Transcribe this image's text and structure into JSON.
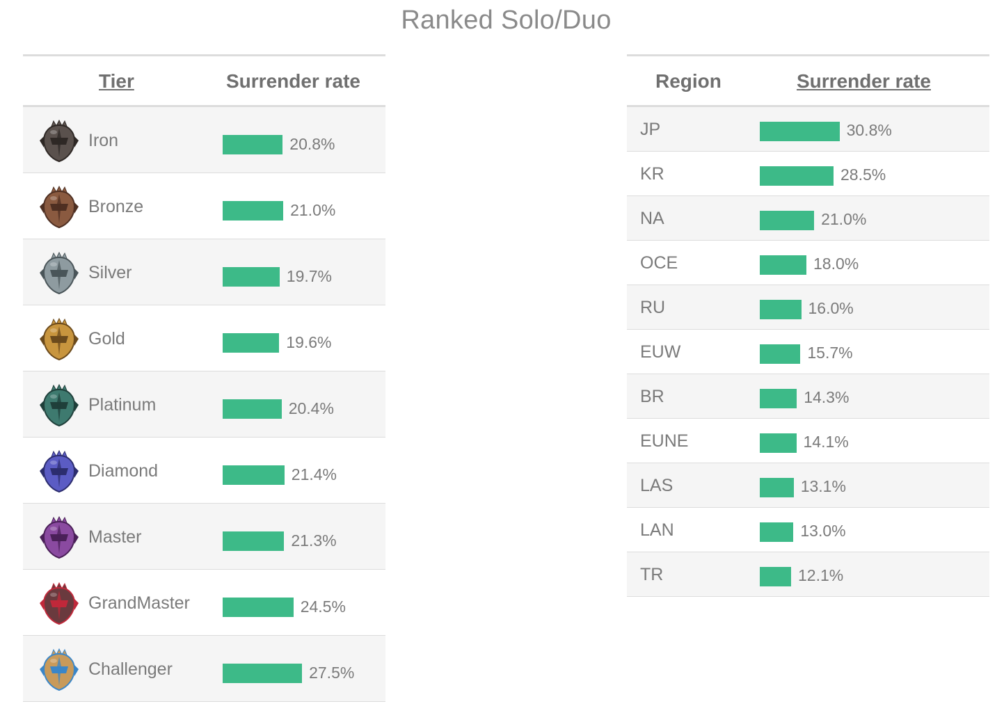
{
  "title": "Ranked Solo/Duo",
  "colors": {
    "bar": "#3dba88",
    "border": "#dcdcdc",
    "row_alt": "#f5f5f5",
    "text": "#7a7a7a"
  },
  "tier_table": {
    "col_tier": "Tier",
    "col_rate": "Surrender rate",
    "sorted_by": "Tier",
    "rows": [
      {
        "name": "Iron",
        "label": "20.8%",
        "value": 20.8,
        "icon": "iron-emblem-icon",
        "color": "#5a514d",
        "accent": "#2e2825"
      },
      {
        "name": "Bronze",
        "label": "21.0%",
        "value": 21.0,
        "icon": "bronze-emblem-icon",
        "color": "#8a5a40",
        "accent": "#4e2f22"
      },
      {
        "name": "Silver",
        "label": "19.7%",
        "value": 19.7,
        "icon": "silver-emblem-icon",
        "color": "#8e9ba0",
        "accent": "#4a5559"
      },
      {
        "name": "Gold",
        "label": "19.6%",
        "value": 19.6,
        "icon": "gold-emblem-icon",
        "color": "#c8953e",
        "accent": "#6b4a1c"
      },
      {
        "name": "Platinum",
        "label": "20.4%",
        "value": 20.4,
        "icon": "platinum-emblem-icon",
        "color": "#3e7a6f",
        "accent": "#1f3f3a"
      },
      {
        "name": "Diamond",
        "label": "21.4%",
        "value": 21.4,
        "icon": "diamond-emblem-icon",
        "color": "#5b5cc4",
        "accent": "#2c2d6e"
      },
      {
        "name": "Master",
        "label": "21.3%",
        "value": 21.3,
        "icon": "master-emblem-icon",
        "color": "#8a4aa0",
        "accent": "#4a2058"
      },
      {
        "name": "GrandMaster",
        "label": "24.5%",
        "value": 24.5,
        "icon": "grandmaster-emblem-icon",
        "color": "#6a3a3e",
        "accent": "#c0283a"
      },
      {
        "name": "Challenger",
        "label": "27.5%",
        "value": 27.5,
        "icon": "challenger-emblem-icon",
        "color": "#c89a5a",
        "accent": "#3a86c8"
      }
    ]
  },
  "region_table": {
    "col_region": "Region",
    "col_rate": "Surrender rate",
    "sorted_by": "Surrender rate",
    "rows": [
      {
        "name": "JP",
        "label": "30.8%",
        "value": 30.8
      },
      {
        "name": "KR",
        "label": "28.5%",
        "value": 28.5
      },
      {
        "name": "NA",
        "label": "21.0%",
        "value": 21.0
      },
      {
        "name": "OCE",
        "label": "18.0%",
        "value": 18.0
      },
      {
        "name": "RU",
        "label": "16.0%",
        "value": 16.0
      },
      {
        "name": "EUW",
        "label": "15.7%",
        "value": 15.7
      },
      {
        "name": "BR",
        "label": "14.3%",
        "value": 14.3
      },
      {
        "name": "EUNE",
        "label": "14.1%",
        "value": 14.1
      },
      {
        "name": "LAS",
        "label": "13.1%",
        "value": 13.1
      },
      {
        "name": "LAN",
        "label": "13.0%",
        "value": 13.0
      },
      {
        "name": "TR",
        "label": "12.1%",
        "value": 12.1
      }
    ]
  },
  "chart_data": [
    {
      "type": "table",
      "title": "Ranked Solo/Duo",
      "columns": [
        "Tier",
        "Surrender rate"
      ],
      "categories": [
        "Iron",
        "Bronze",
        "Silver",
        "Gold",
        "Platinum",
        "Diamond",
        "Master",
        "GrandMaster",
        "Challenger"
      ],
      "values": [
        20.8,
        21.0,
        19.7,
        19.6,
        20.4,
        21.4,
        21.3,
        24.5,
        27.5
      ]
    },
    {
      "type": "table",
      "title": "Ranked Solo/Duo",
      "columns": [
        "Region",
        "Surrender rate"
      ],
      "categories": [
        "JP",
        "KR",
        "NA",
        "OCE",
        "RU",
        "EUW",
        "BR",
        "EUNE",
        "LAS",
        "LAN",
        "TR"
      ],
      "values": [
        30.8,
        28.5,
        21.0,
        18.0,
        16.0,
        15.7,
        14.3,
        14.1,
        13.1,
        13.0,
        12.1
      ]
    }
  ]
}
